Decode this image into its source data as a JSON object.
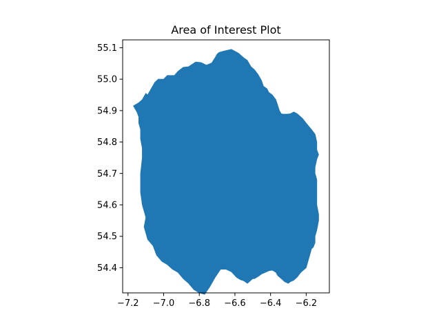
{
  "chart_data": {
    "type": "area",
    "title": "Area of Interest Plot",
    "xlabel": "",
    "ylabel": "",
    "xlim": [
      -7.23,
      -6.07
    ],
    "ylim": [
      54.32,
      55.125
    ],
    "xticks": [
      -7.2,
      -7.0,
      -6.8,
      -6.6,
      -6.4,
      -6.2
    ],
    "xtick_labels": [
      "−7.2",
      "−7.0",
      "−6.8",
      "−6.6",
      "−6.4",
      "−6.2"
    ],
    "yticks": [
      54.4,
      54.5,
      54.6,
      54.7,
      54.8,
      54.9,
      55.0,
      55.1
    ],
    "ytick_labels": [
      "54.4",
      "54.5",
      "54.6",
      "54.7",
      "54.8",
      "54.9",
      "55.0",
      "55.1"
    ],
    "grid": false,
    "fill_color": "#1f77b4",
    "polygon": {
      "x": [
        -7.17,
        -7.14,
        -7.12,
        -7.1,
        -7.09,
        -7.07,
        -7.05,
        -7.03,
        -7.0,
        -6.98,
        -6.94,
        -6.92,
        -6.89,
        -6.86,
        -6.82,
        -6.79,
        -6.76,
        -6.73,
        -6.71,
        -6.7,
        -6.69,
        -6.66,
        -6.62,
        -6.58,
        -6.55,
        -6.53,
        -6.51,
        -6.49,
        -6.47,
        -6.45,
        -6.44,
        -6.42,
        -6.41,
        -6.39,
        -6.37,
        -6.35,
        -6.34,
        -6.33,
        -6.31,
        -6.29,
        -6.27,
        -6.25,
        -6.22,
        -6.2,
        -6.17,
        -6.15,
        -6.14,
        -6.14,
        -6.13,
        -6.14,
        -6.15,
        -6.15,
        -6.14,
        -6.14,
        -6.14,
        -6.14,
        -6.13,
        -6.13,
        -6.14,
        -6.15,
        -6.15,
        -6.16,
        -6.17,
        -6.18,
        -6.19,
        -6.2,
        -6.23,
        -6.25,
        -6.27,
        -6.29,
        -6.3,
        -6.32,
        -6.34,
        -6.36,
        -6.37,
        -6.39,
        -6.41,
        -6.43,
        -6.45,
        -6.47,
        -6.49,
        -6.5,
        -6.52,
        -6.53,
        -6.55,
        -6.57,
        -6.59,
        -6.62,
        -6.65,
        -6.68,
        -6.71,
        -6.74,
        -6.77,
        -6.8,
        -6.83,
        -6.86,
        -6.89,
        -6.92,
        -6.95,
        -6.98,
        -7.01,
        -7.04,
        -7.06,
        -7.09,
        -7.1,
        -7.11,
        -7.1,
        -7.12,
        -7.13,
        -7.13,
        -7.12,
        -7.12,
        -7.13,
        -7.13,
        -7.14,
        -7.14,
        -7.15,
        -7.16,
        -7.17,
        -7.17
      ],
      "y": [
        54.915,
        54.925,
        54.935,
        54.955,
        54.95,
        54.97,
        54.99,
        55.0,
        55.0,
        55.012,
        55.012,
        55.025,
        55.038,
        55.04,
        55.055,
        55.053,
        55.045,
        55.052,
        55.07,
        55.08,
        55.085,
        55.09,
        55.095,
        55.083,
        55.068,
        55.06,
        55.04,
        55.03,
        55.015,
        54.995,
        54.978,
        54.97,
        54.958,
        54.95,
        54.935,
        54.9,
        54.89,
        54.889,
        54.889,
        54.89,
        54.896,
        54.89,
        54.875,
        54.86,
        54.84,
        54.825,
        54.8,
        54.775,
        54.76,
        54.745,
        54.72,
        54.7,
        54.68,
        54.66,
        54.65,
        54.6,
        54.57,
        54.55,
        54.52,
        54.5,
        54.48,
        54.465,
        54.46,
        54.44,
        54.42,
        54.4,
        54.385,
        54.37,
        54.36,
        54.355,
        54.35,
        54.355,
        54.365,
        54.375,
        54.385,
        54.392,
        54.39,
        54.385,
        54.38,
        54.372,
        54.365,
        54.365,
        54.355,
        54.35,
        54.358,
        54.362,
        54.369,
        54.387,
        54.395,
        54.395,
        54.37,
        54.34,
        54.315,
        54.32,
        54.33,
        54.35,
        54.365,
        54.385,
        54.395,
        54.41,
        54.42,
        54.44,
        54.47,
        54.49,
        54.51,
        54.53,
        54.56,
        54.6,
        54.64,
        54.7,
        54.75,
        54.78,
        54.81,
        54.84,
        54.86,
        54.88,
        54.895,
        54.905,
        54.915,
        54.915
      ]
    }
  }
}
